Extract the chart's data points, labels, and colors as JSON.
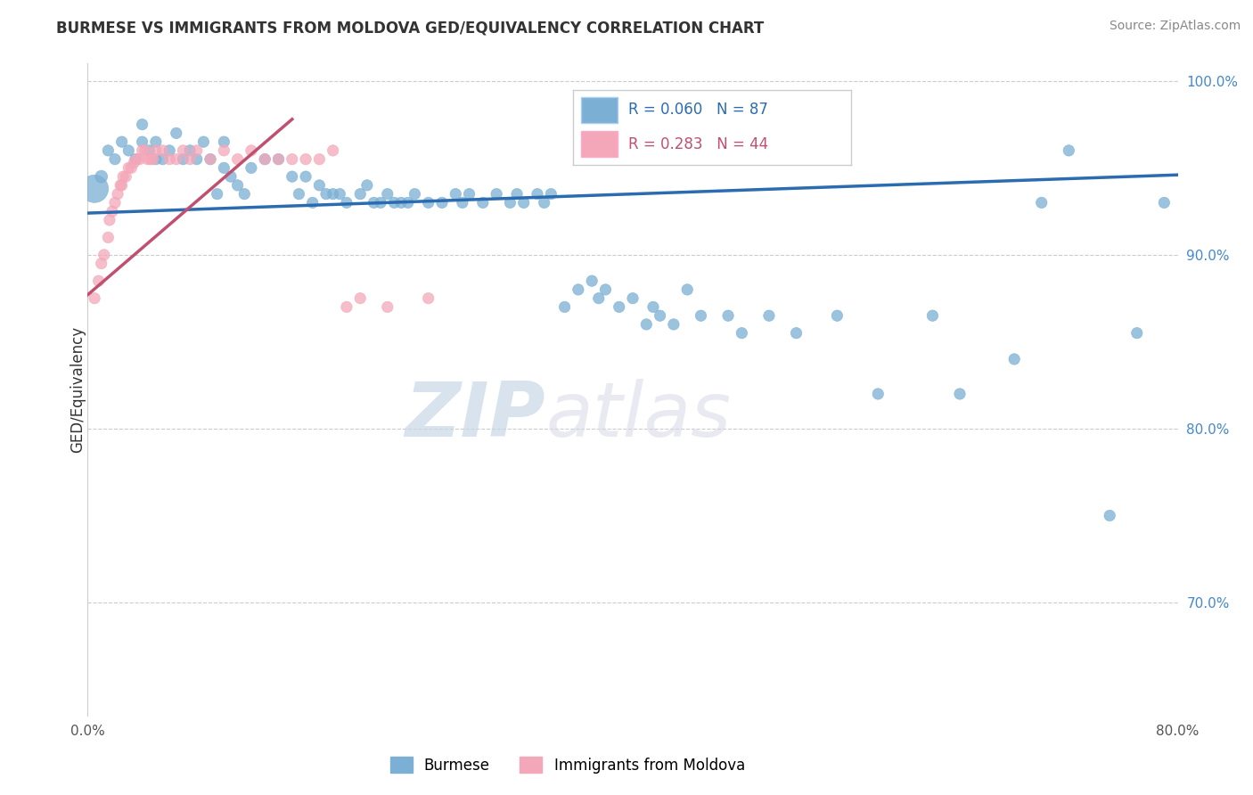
{
  "title": "BURMESE VS IMMIGRANTS FROM MOLDOVA GED/EQUIVALENCY CORRELATION CHART",
  "source": "Source: ZipAtlas.com",
  "ylabel": "GED/Equivalency",
  "legend_label1": "Burmese",
  "legend_label2": "Immigrants from Moldova",
  "R1": 0.06,
  "N1": 87,
  "R2": 0.283,
  "N2": 44,
  "xlim": [
    0.0,
    0.8
  ],
  "ylim": [
    0.635,
    1.01
  ],
  "ytick_vals": [
    0.7,
    0.8,
    0.9,
    1.0
  ],
  "ytick_labels": [
    "70.0%",
    "80.0%",
    "90.0%",
    "100.0%"
  ],
  "color_blue": "#7BAFD4",
  "color_pink": "#F4A7B9",
  "line_color_blue": "#2B6CB0",
  "line_color_pink": "#C05070",
  "watermark_zip": "ZIP",
  "watermark_atlas": "atlas",
  "blue_scatter_x": [
    0.005,
    0.01,
    0.015,
    0.02,
    0.025,
    0.03,
    0.035,
    0.04,
    0.04,
    0.045,
    0.05,
    0.05,
    0.055,
    0.06,
    0.065,
    0.07,
    0.075,
    0.08,
    0.085,
    0.09,
    0.095,
    0.1,
    0.1,
    0.105,
    0.11,
    0.115,
    0.12,
    0.13,
    0.14,
    0.15,
    0.155,
    0.16,
    0.165,
    0.17,
    0.175,
    0.18,
    0.185,
    0.19,
    0.2,
    0.205,
    0.21,
    0.215,
    0.22,
    0.225,
    0.23,
    0.235,
    0.24,
    0.25,
    0.26,
    0.27,
    0.275,
    0.28,
    0.29,
    0.3,
    0.31,
    0.315,
    0.32,
    0.33,
    0.335,
    0.34,
    0.35,
    0.36,
    0.37,
    0.375,
    0.38,
    0.39,
    0.4,
    0.41,
    0.415,
    0.42,
    0.43,
    0.44,
    0.45,
    0.47,
    0.48,
    0.5,
    0.52,
    0.55,
    0.58,
    0.62,
    0.64,
    0.68,
    0.7,
    0.72,
    0.75,
    0.77,
    0.79
  ],
  "blue_scatter_y": [
    0.938,
    0.945,
    0.96,
    0.955,
    0.965,
    0.96,
    0.955,
    0.965,
    0.975,
    0.96,
    0.955,
    0.965,
    0.955,
    0.96,
    0.97,
    0.955,
    0.96,
    0.955,
    0.965,
    0.955,
    0.935,
    0.95,
    0.965,
    0.945,
    0.94,
    0.935,
    0.95,
    0.955,
    0.955,
    0.945,
    0.935,
    0.945,
    0.93,
    0.94,
    0.935,
    0.935,
    0.935,
    0.93,
    0.935,
    0.94,
    0.93,
    0.93,
    0.935,
    0.93,
    0.93,
    0.93,
    0.935,
    0.93,
    0.93,
    0.935,
    0.93,
    0.935,
    0.93,
    0.935,
    0.93,
    0.935,
    0.93,
    0.935,
    0.93,
    0.935,
    0.87,
    0.88,
    0.885,
    0.875,
    0.88,
    0.87,
    0.875,
    0.86,
    0.87,
    0.865,
    0.86,
    0.88,
    0.865,
    0.865,
    0.855,
    0.865,
    0.855,
    0.865,
    0.82,
    0.865,
    0.82,
    0.84,
    0.93,
    0.96,
    0.75,
    0.855,
    0.93
  ],
  "blue_dot_sizes": [
    500,
    100,
    80,
    80,
    80,
    80,
    80,
    80,
    80,
    80,
    80,
    80,
    80,
    80,
    80,
    80,
    80,
    80,
    80,
    80,
    80,
    80,
    80,
    80,
    80,
    80,
    80,
    80,
    80,
    80,
    80,
    80,
    80,
    80,
    80,
    80,
    80,
    80,
    80,
    80,
    80,
    80,
    80,
    80,
    80,
    80,
    80,
    80,
    80,
    80,
    80,
    80,
    80,
    80,
    80,
    80,
    80,
    80,
    80,
    80,
    80,
    80,
    80,
    80,
    80,
    80,
    80,
    80,
    80,
    80,
    80,
    80,
    80,
    80,
    80,
    80,
    80,
    80,
    80,
    80,
    80,
    80,
    80,
    80,
    80,
    80,
    80
  ],
  "pink_scatter_x": [
    0.005,
    0.008,
    0.01,
    0.012,
    0.015,
    0.016,
    0.018,
    0.02,
    0.022,
    0.024,
    0.025,
    0.026,
    0.028,
    0.03,
    0.032,
    0.034,
    0.036,
    0.038,
    0.04,
    0.042,
    0.044,
    0.046,
    0.048,
    0.05,
    0.055,
    0.06,
    0.065,
    0.07,
    0.075,
    0.08,
    0.09,
    0.1,
    0.11,
    0.12,
    0.13,
    0.14,
    0.15,
    0.16,
    0.17,
    0.18,
    0.19,
    0.2,
    0.22,
    0.25
  ],
  "pink_scatter_y": [
    0.875,
    0.885,
    0.895,
    0.9,
    0.91,
    0.92,
    0.925,
    0.93,
    0.935,
    0.94,
    0.94,
    0.945,
    0.945,
    0.95,
    0.95,
    0.953,
    0.955,
    0.955,
    0.96,
    0.96,
    0.955,
    0.955,
    0.955,
    0.96,
    0.96,
    0.955,
    0.955,
    0.96,
    0.955,
    0.96,
    0.955,
    0.96,
    0.955,
    0.96,
    0.955,
    0.955,
    0.955,
    0.955,
    0.955,
    0.96,
    0.87,
    0.875,
    0.87,
    0.875
  ],
  "pink_dot_sizes": [
    80,
    80,
    80,
    80,
    80,
    80,
    80,
    80,
    80,
    80,
    80,
    80,
    80,
    80,
    80,
    80,
    80,
    80,
    80,
    80,
    80,
    80,
    80,
    80,
    80,
    80,
    80,
    80,
    80,
    80,
    80,
    80,
    80,
    80,
    80,
    80,
    80,
    80,
    80,
    80,
    80,
    80,
    80,
    80
  ]
}
